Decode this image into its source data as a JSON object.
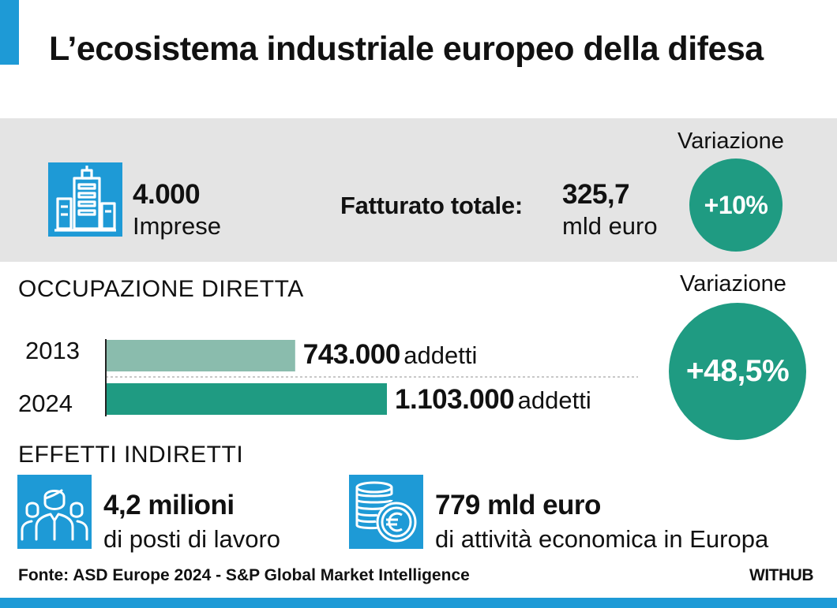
{
  "title": "L’ecosistema industriale europeo della difesa",
  "colors": {
    "accent_blue": "#1e9ad6",
    "teal": "#1f9b82",
    "teal_light": "#8abcad",
    "band_gray": "#e4e4e4"
  },
  "companies": {
    "value": "4.000",
    "label": "Imprese",
    "icon": "office-building-icon"
  },
  "turnover": {
    "label": "Fatturato totale:",
    "value": "325,7",
    "unit": "mld euro",
    "change_label": "Variazione",
    "change": "+10%"
  },
  "employment": {
    "heading": "OCCUPAZIONE DIRETTA",
    "change_label": "Variazione",
    "change": "+48,5%",
    "rows": [
      {
        "year": "2013",
        "value_text": "743.000",
        "unit": "addetti"
      },
      {
        "year": "2024",
        "value_text": "1.103.000",
        "unit": "addetti"
      }
    ]
  },
  "indirect": {
    "heading": "EFFETTI INDIRETTI",
    "jobs": {
      "value": "4,2 milioni",
      "label": "di posti di lavoro",
      "icon": "people-group-icon"
    },
    "activity": {
      "value": "779 mld euro",
      "label": "di attività economica in Europa",
      "icon": "euro-coins-icon"
    }
  },
  "source": "Fonte: ASD Europe 2024 - S&P Global Market Intelligence",
  "brand": "WITHUB",
  "chart_data": {
    "type": "bar",
    "orientation": "horizontal",
    "title": "OCCUPAZIONE DIRETTA",
    "categories": [
      "2013",
      "2024"
    ],
    "values": [
      743000,
      1103000
    ],
    "unit": "addetti",
    "xlim": [
      0,
      1103000
    ],
    "grid": false,
    "legend": "none",
    "bar_colors": [
      "#8abcad",
      "#1f9b82"
    ]
  }
}
